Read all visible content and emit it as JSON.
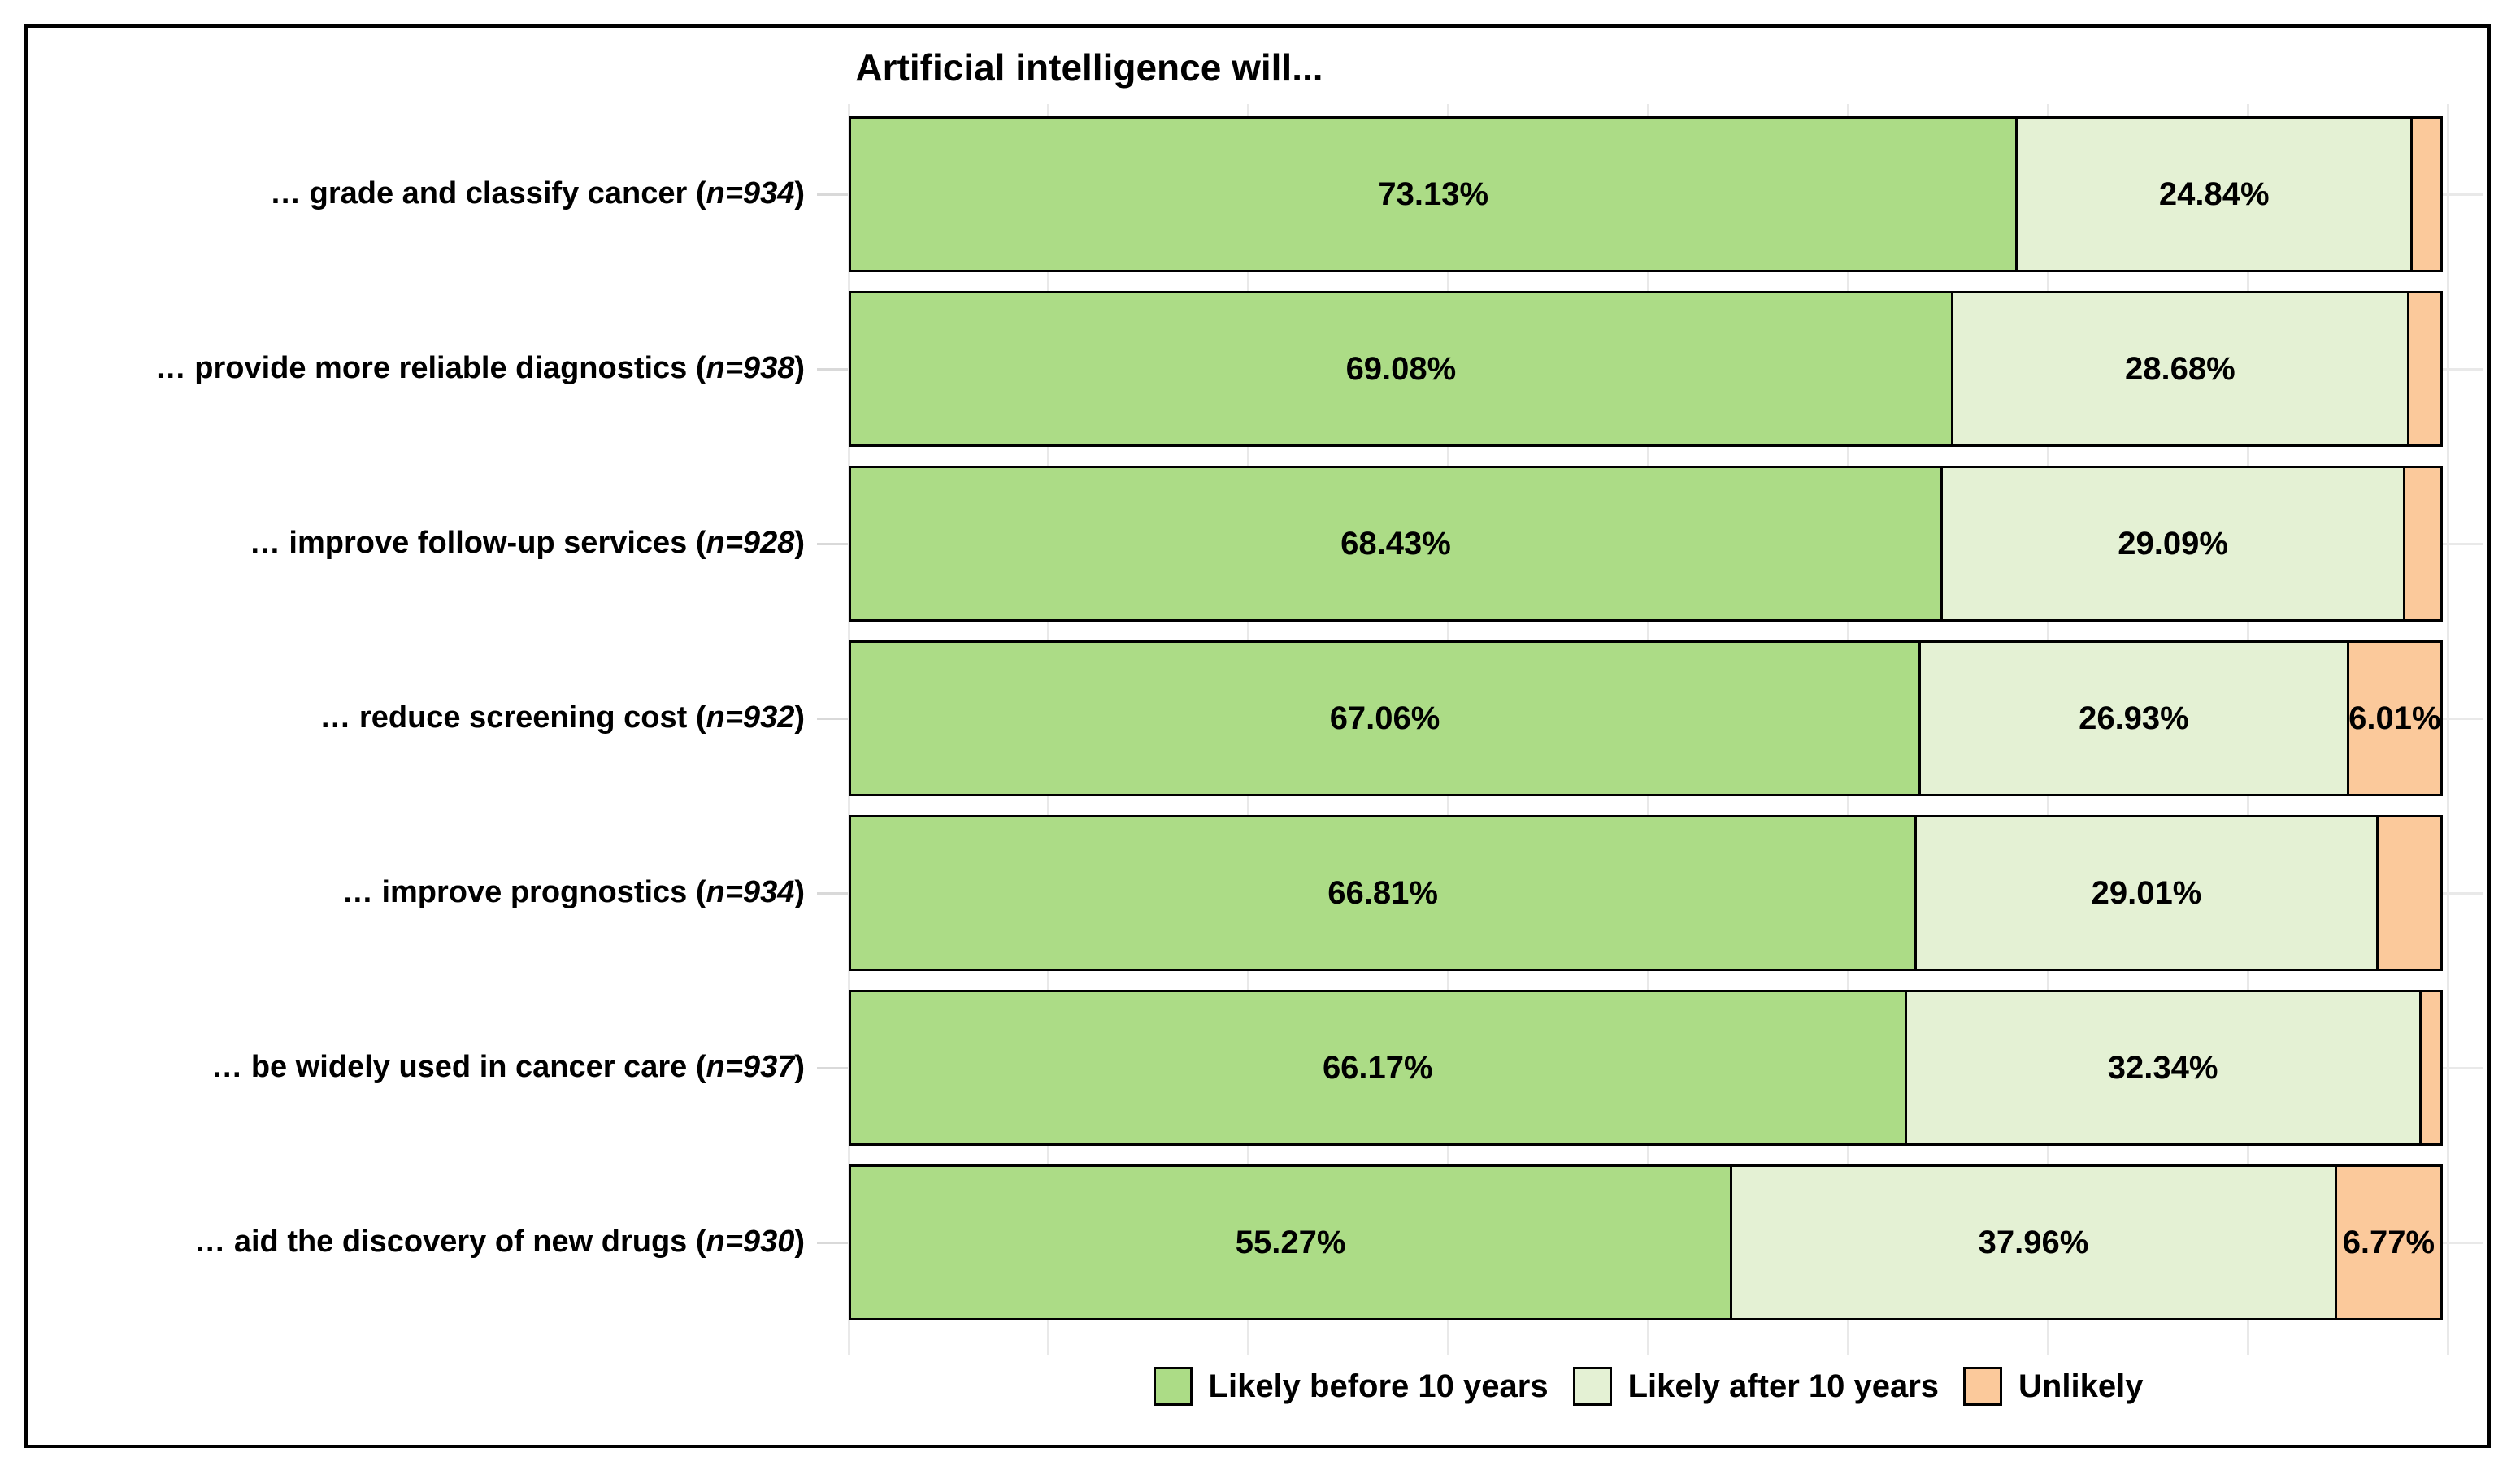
{
  "title": "Artificial intelligence will...",
  "colors": {
    "before": "#ACDC86",
    "after": "#E4F1D4",
    "unlikely": "#FBC99B",
    "bar_border": "#000000",
    "gridline": "#E9E9E9",
    "tick": "#D9D9D9",
    "frame": "#000000",
    "background": "#FFFFFF",
    "label_text": "#000000"
  },
  "legend": {
    "items": [
      {
        "key": "before",
        "label": "Likely before 10 years"
      },
      {
        "key": "after",
        "label": "Likely after 10 years"
      },
      {
        "key": "unlikely",
        "label": "Unlikely"
      }
    ]
  },
  "chart_data": {
    "type": "bar",
    "stacked": true,
    "orientation": "horizontal",
    "title": "Artificial intelligence will...",
    "xlabel": "",
    "ylabel": "",
    "xlim": [
      0,
      100
    ],
    "grid": true,
    "gridline_step_pct": 12.5,
    "legend_position": "bottom",
    "series_order": [
      "before",
      "after",
      "unlikely"
    ],
    "series": [
      {
        "name": "Likely before 10 years",
        "values": [
          73.13,
          69.08,
          68.43,
          67.06,
          66.81,
          66.17,
          55.27
        ]
      },
      {
        "name": "Likely after 10 years",
        "values": [
          24.84,
          28.68,
          29.09,
          26.93,
          29.01,
          32.34,
          37.96
        ]
      },
      {
        "name": "Unlikely",
        "values": [
          2.03,
          2.24,
          2.48,
          6.01,
          4.18,
          1.49,
          6.77
        ]
      }
    ],
    "rows": [
      {
        "category": "… grade and classify cancer",
        "n": "n=934",
        "values": {
          "before": 73.13,
          "after": 24.84,
          "unlikely": 2.03
        },
        "labels": {
          "before": "73.13%",
          "after": "24.84%",
          "unlikely": ""
        }
      },
      {
        "category": "… provide more reliable diagnostics",
        "n": "n=938",
        "values": {
          "before": 69.08,
          "after": 28.68,
          "unlikely": 2.24
        },
        "labels": {
          "before": "69.08%",
          "after": "28.68%",
          "unlikely": ""
        }
      },
      {
        "category": "… improve follow-up services",
        "n": "n=928",
        "values": {
          "before": 68.43,
          "after": 29.09,
          "unlikely": 2.48
        },
        "labels": {
          "before": "68.43%",
          "after": "29.09%",
          "unlikely": ""
        }
      },
      {
        "category": "… reduce screening cost",
        "n": "n=932",
        "values": {
          "before": 67.06,
          "after": 26.93,
          "unlikely": 6.01
        },
        "labels": {
          "before": "67.06%",
          "after": "26.93%",
          "unlikely": "6.01%"
        }
      },
      {
        "category": "… improve prognostics",
        "n": "n=934",
        "values": {
          "before": 66.81,
          "after": 29.01,
          "unlikely": 4.18
        },
        "labels": {
          "before": "66.81%",
          "after": "29.01%",
          "unlikely": ""
        }
      },
      {
        "category": "… be widely used in cancer care",
        "n": "n=937",
        "values": {
          "before": 66.17,
          "after": 32.34,
          "unlikely": 1.49
        },
        "labels": {
          "before": "66.17%",
          "after": "32.34%",
          "unlikely": ""
        }
      },
      {
        "category": "… aid the discovery of new drugs",
        "n": "n=930",
        "values": {
          "before": 55.27,
          "after": 37.96,
          "unlikely": 6.77
        },
        "labels": {
          "before": "55.27%",
          "after": "37.96%",
          "unlikely": "6.77%"
        }
      }
    ]
  }
}
